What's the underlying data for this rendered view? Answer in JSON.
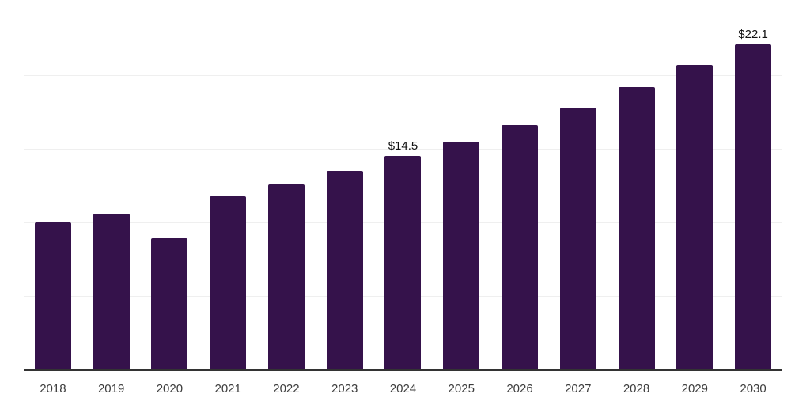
{
  "chart_data": {
    "type": "bar",
    "categories": [
      "2018",
      "2019",
      "2020",
      "2021",
      "2022",
      "2023",
      "2024",
      "2025",
      "2026",
      "2027",
      "2028",
      "2029",
      "2030"
    ],
    "values": [
      10.0,
      10.6,
      8.9,
      11.8,
      12.6,
      13.5,
      14.5,
      15.5,
      16.6,
      17.8,
      19.2,
      20.7,
      22.1
    ],
    "point_labels": [
      "",
      "",
      "",
      "",
      "",
      "",
      "$14.5",
      "",
      "",
      "",
      "",
      "",
      "$22.1"
    ],
    "title": "",
    "xlabel": "",
    "ylabel": "",
    "ylim": [
      0,
      25
    ],
    "gridline_step": 5,
    "grid": true,
    "legend": false,
    "y_tick_labels_visible": false,
    "colors": {
      "bar": "#35124B",
      "axis_line": "#333333",
      "gridline": "#efefef",
      "tick_label": "#3d3d3d",
      "data_label": "#111111",
      "background": "#ffffff"
    }
  }
}
